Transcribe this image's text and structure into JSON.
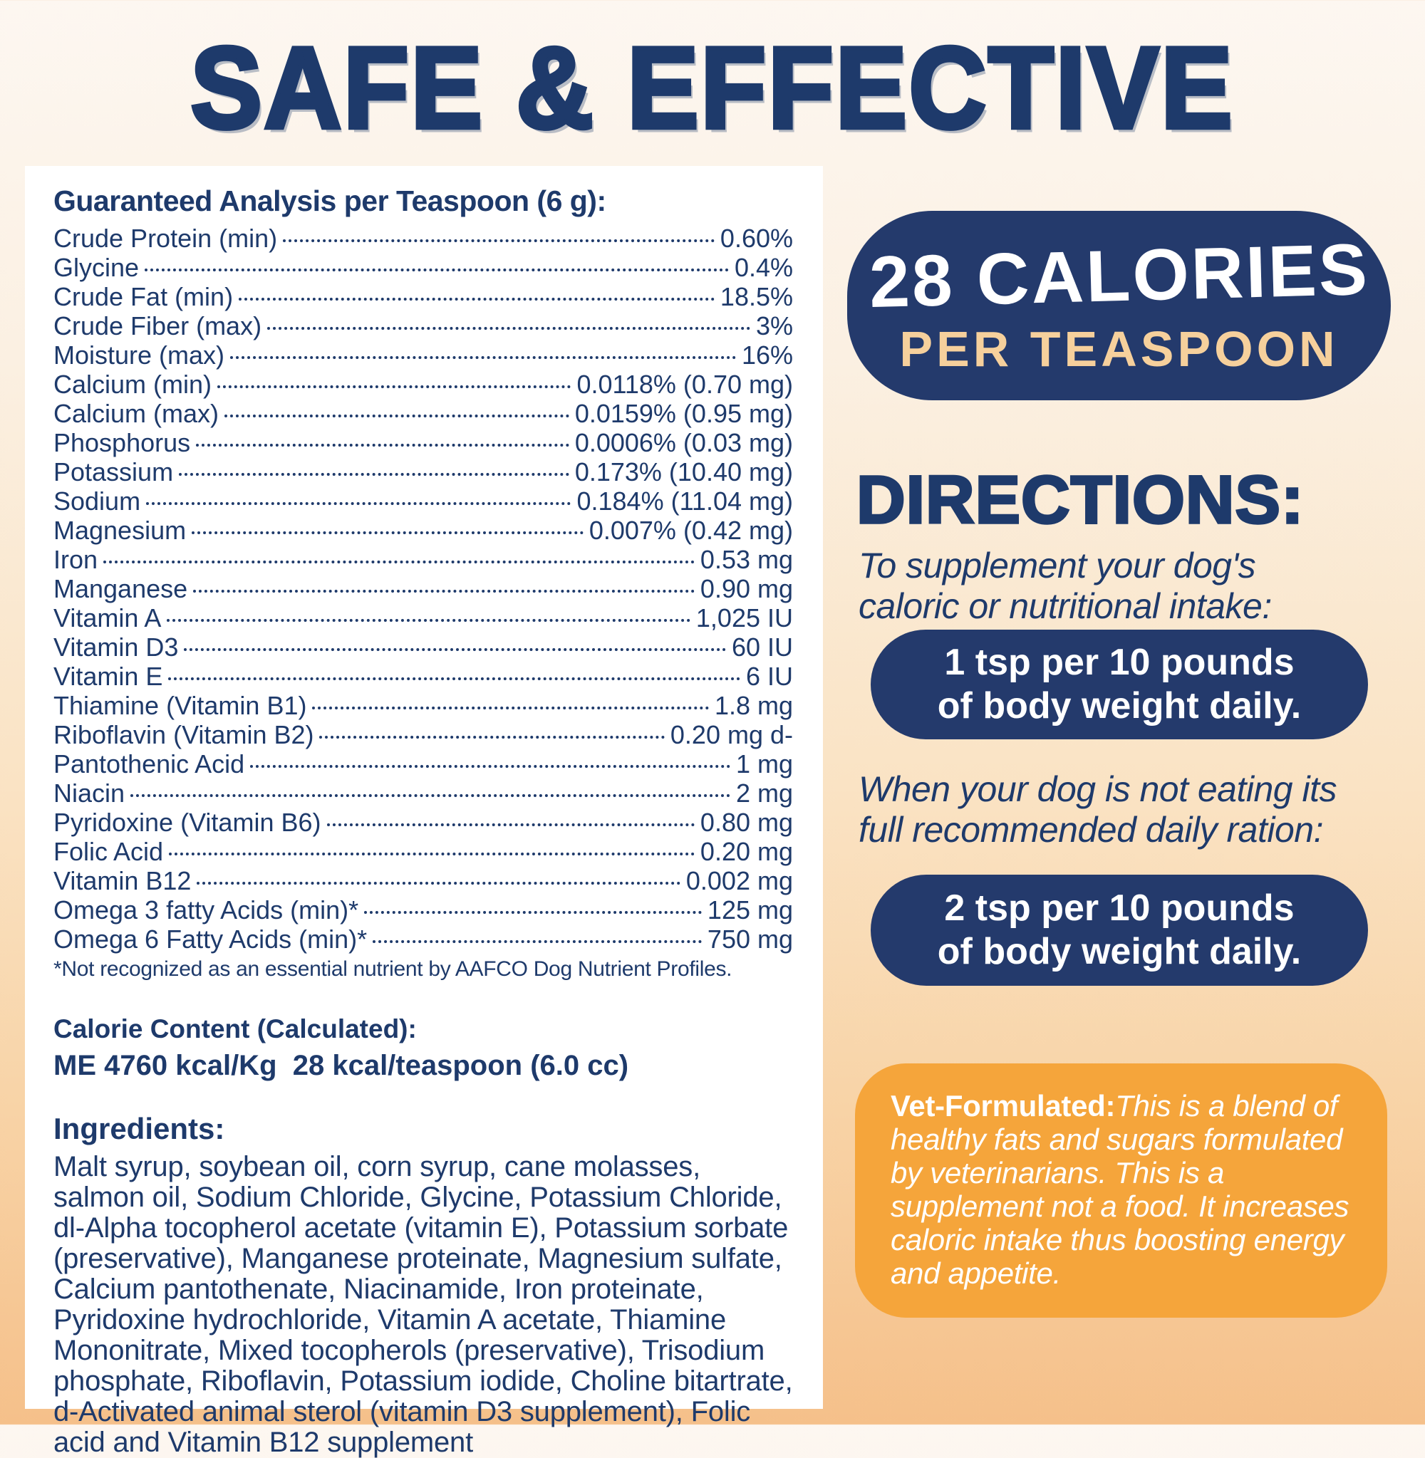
{
  "title": "SAFE & EFFECTIVE",
  "colors": {
    "navy": "#1e3a6b",
    "badge_navy": "#243a6c",
    "orange_box": "#f5a53b",
    "gold_text": "#f6d09c",
    "panel": "#ffffff"
  },
  "analysis": {
    "heading": "Guaranteed Analysis per Teaspoon (6 g):",
    "rows": [
      {
        "label": "Crude Protein (min)",
        "value": "0.60%"
      },
      {
        "label": "Glycine",
        "value": "0.4%"
      },
      {
        "label": "Crude Fat (min)",
        "value": "18.5%"
      },
      {
        "label": "Crude Fiber (max)",
        "value": "3%"
      },
      {
        "label": "Moisture (max)",
        "value": "16%"
      },
      {
        "label": "Calcium (min)",
        "value": "0.0118% (0.70 mg)"
      },
      {
        "label": "Calcium (max)",
        "value": "0.0159% (0.95 mg)"
      },
      {
        "label": "Phosphorus",
        "value": "0.0006% (0.03 mg)"
      },
      {
        "label": "Potassium",
        "value": "0.173% (10.40 mg)"
      },
      {
        "label": "Sodium",
        "value": "0.184% (11.04 mg)"
      },
      {
        "label": "Magnesium",
        "value": "0.007% (0.42 mg)"
      },
      {
        "label": "Iron",
        "value": "0.53 mg"
      },
      {
        "label": "Manganese",
        "value": "0.90 mg"
      },
      {
        "label": "Vitamin A",
        "value": "1,025 IU"
      },
      {
        "label": "Vitamin D3",
        "value": "60 IU"
      },
      {
        "label": "Vitamin E",
        "value": "6 IU"
      },
      {
        "label": "Thiamine (Vitamin B1)",
        "value": "1.8 mg"
      },
      {
        "label": "Riboflavin (Vitamin B2)",
        "value": "0.20 mg d-"
      },
      {
        "label": "Pantothenic Acid",
        "value": "1 mg"
      },
      {
        "label": "Niacin",
        "value": "2 mg"
      },
      {
        "label": "Pyridoxine (Vitamin B6)",
        "value": "0.80 mg"
      },
      {
        "label": "Folic Acid",
        "value": "0.20 mg"
      },
      {
        "label": "Vitamin B12",
        "value": "0.002 mg"
      },
      {
        "label": "Omega 3 fatty Acids (min)*",
        "value": "125 mg"
      },
      {
        "label": "Omega 6 Fatty Acids (min)*",
        "value": "750 mg"
      }
    ],
    "footnote": "*Not recognized as an essential nutrient by AAFCO Dog Nutrient Profiles."
  },
  "calorie_content": {
    "heading": "Calorie Content (Calculated):",
    "value_line": "ME 4760 kcal/Kg  28 kcal/teaspoon (6.0 cc)"
  },
  "ingredients": {
    "heading": "Ingredients:",
    "text": "Malt syrup, soybean oil, corn syrup, cane molasses, salmon oil, Sodium Chloride, Glycine, Potassium Chloride, dl-Alpha tocopherol acetate (vitamin E), Potassium sorbate (preservative), Manganese proteinate, Magnesium sulfate, Calcium pantothenate, Niacinamide, Iron proteinate, Pyridoxine hydrochloride, Vitamin A acetate, Thiamine Mononitrate, Mixed tocopherols (preservative), Trisodium phosphate, Riboflavin, Potassium iodide, Choline bitartrate, d-Activated animal sterol (vitamin D3 supplement), Folic acid and Vitamin B12 supplement"
  },
  "calories_badge": {
    "line1": "28 CALORIES",
    "line2": "PER TEASPOON"
  },
  "directions": {
    "heading": "DIRECTIONS:",
    "intro1_line1": "To supplement your dog's",
    "intro1_line2": "caloric or nutritional intake:",
    "pill1_line1": "1 tsp per 10 pounds",
    "pill1_line2": "of body weight daily.",
    "intro2_line1": "When your dog is not eating its",
    "intro2_line2": "full recommended daily ration:",
    "pill2_line1": "2 tsp per 10 pounds",
    "pill2_line2": "of body weight daily."
  },
  "vet_box": {
    "bold_label": "Vet-Formulated:",
    "body": "This is a blend of healthy fats and sugars formulated by veterinarians. This is a supplement not a food. It increases caloric intake thus boosting energy and appetite."
  }
}
